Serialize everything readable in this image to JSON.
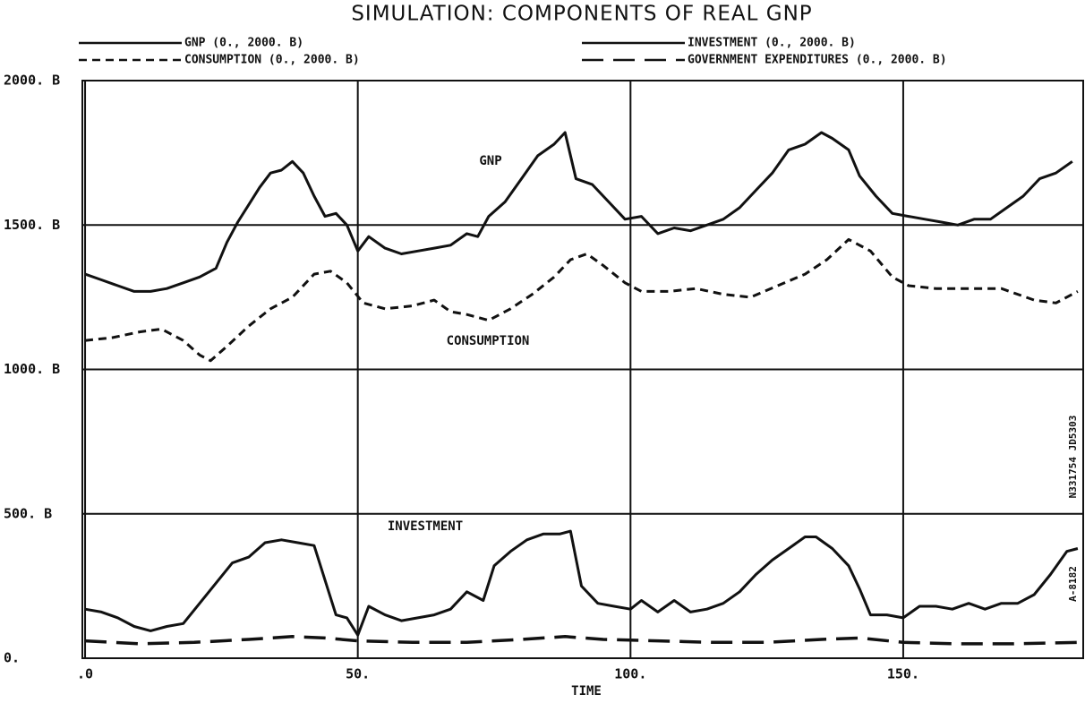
{
  "chart_data": {
    "type": "line",
    "title": "SIMULATION: COMPONENTS OF REAL GNP",
    "x_label": "TIME",
    "annotations": [
      "GNP",
      "CONSUMPTION",
      "INVESTMENT",
      "N331754 JD5303",
      "A-8182"
    ],
    "xlim": [
      -0.5,
      183
    ],
    "ylim": [
      0,
      2000
    ],
    "xticks": [
      {
        "value": 0,
        "label": ".0"
      },
      {
        "value": 50,
        "label": "50."
      },
      {
        "value": 100,
        "label": "100."
      },
      {
        "value": 150,
        "label": "150."
      }
    ],
    "yticks": [
      {
        "value": 0,
        "label": "0."
      },
      {
        "value": 500,
        "label": "500. B"
      },
      {
        "value": 1000,
        "label": "1000. B"
      },
      {
        "value": 1500,
        "label": "1500. B"
      },
      {
        "value": 2000,
        "label": "2000. B"
      }
    ],
    "grid": true,
    "series": [
      {
        "name": "GNP (0., 2000. B)",
        "color": "#111111",
        "dash": "solid",
        "x": [
          0,
          3,
          6,
          9,
          12,
          15,
          18,
          21,
          24,
          26,
          28,
          30,
          32,
          34,
          36,
          38,
          40,
          42,
          44,
          46,
          48,
          50,
          52,
          55,
          58,
          61,
          64,
          67,
          70,
          72,
          74,
          77,
          80,
          83,
          86,
          88,
          90,
          93,
          96,
          99,
          102,
          105,
          108,
          111,
          114,
          117,
          120,
          123,
          126,
          129,
          132,
          135,
          137,
          140,
          142,
          145,
          148,
          151,
          154,
          157,
          160,
          163,
          166,
          169,
          172,
          175,
          178,
          181
        ],
        "values": [
          1330,
          1310,
          1290,
          1270,
          1270,
          1280,
          1300,
          1320,
          1350,
          1440,
          1510,
          1570,
          1630,
          1680,
          1690,
          1720,
          1680,
          1600,
          1530,
          1540,
          1500,
          1410,
          1460,
          1420,
          1400,
          1410,
          1420,
          1430,
          1470,
          1460,
          1530,
          1580,
          1660,
          1740,
          1780,
          1820,
          1660,
          1640,
          1580,
          1520,
          1530,
          1470,
          1490,
          1480,
          1500,
          1520,
          1560,
          1620,
          1680,
          1760,
          1780,
          1820,
          1800,
          1760,
          1670,
          1600,
          1540,
          1530,
          1520,
          1510,
          1500,
          1520,
          1520,
          1560,
          1600,
          1660,
          1680,
          1720
        ]
      },
      {
        "name": "CONSUMPTION (0., 2000. B)",
        "color": "#111111",
        "dash": "dashed",
        "x": [
          0,
          5,
          10,
          14,
          18,
          21,
          23,
          26,
          30,
          34,
          38,
          42,
          45,
          48,
          51,
          55,
          60,
          64,
          67,
          70,
          74,
          78,
          82,
          86,
          89,
          92,
          95,
          99,
          102,
          107,
          112,
          117,
          122,
          127,
          132,
          136,
          140,
          144,
          148,
          151,
          156,
          162,
          168,
          174,
          178,
          182
        ],
        "values": [
          1100,
          1110,
          1130,
          1140,
          1100,
          1050,
          1030,
          1080,
          1150,
          1210,
          1250,
          1330,
          1340,
          1300,
          1230,
          1210,
          1220,
          1240,
          1200,
          1190,
          1170,
          1210,
          1260,
          1320,
          1380,
          1400,
          1360,
          1300,
          1270,
          1270,
          1280,
          1260,
          1250,
          1290,
          1330,
          1380,
          1450,
          1410,
          1320,
          1290,
          1280,
          1280,
          1280,
          1240,
          1230,
          1270
        ]
      },
      {
        "name": "INVESTMENT (0., 2000. B)",
        "color": "#111111",
        "dash": "solid",
        "x": [
          0,
          3,
          6,
          9,
          12,
          15,
          18,
          21,
          24,
          27,
          30,
          33,
          36,
          39,
          42,
          44,
          46,
          48,
          50,
          52,
          55,
          58,
          61,
          64,
          67,
          70,
          73,
          75,
          78,
          81,
          84,
          87,
          89,
          91,
          94,
          97,
          100,
          102,
          105,
          108,
          111,
          114,
          117,
          120,
          123,
          126,
          129,
          132,
          134,
          137,
          140,
          142,
          144,
          147,
          150,
          153,
          156,
          159,
          162,
          165,
          168,
          171,
          174,
          177,
          180,
          182
        ],
        "values": [
          170,
          160,
          140,
          110,
          95,
          110,
          120,
          190,
          260,
          330,
          350,
          400,
          410,
          400,
          390,
          270,
          150,
          140,
          80,
          180,
          150,
          130,
          140,
          150,
          170,
          230,
          200,
          320,
          370,
          410,
          430,
          430,
          440,
          250,
          190,
          180,
          170,
          200,
          160,
          200,
          160,
          170,
          190,
          230,
          290,
          340,
          380,
          420,
          420,
          380,
          320,
          240,
          150,
          150,
          140,
          180,
          180,
          170,
          190,
          170,
          190,
          190,
          220,
          290,
          370,
          380
        ]
      },
      {
        "name": "GOVERNMENT EXPENDITURES (0., 2000. B)",
        "color": "#111111",
        "dash": "longdash",
        "x": [
          0,
          10,
          20,
          30,
          38,
          44,
          50,
          60,
          70,
          80,
          88,
          95,
          105,
          115,
          125,
          135,
          142,
          150,
          160,
          170,
          182
        ],
        "values": [
          60,
          50,
          55,
          65,
          75,
          70,
          60,
          55,
          55,
          65,
          75,
          65,
          60,
          55,
          55,
          65,
          70,
          55,
          50,
          50,
          55
        ]
      }
    ]
  }
}
